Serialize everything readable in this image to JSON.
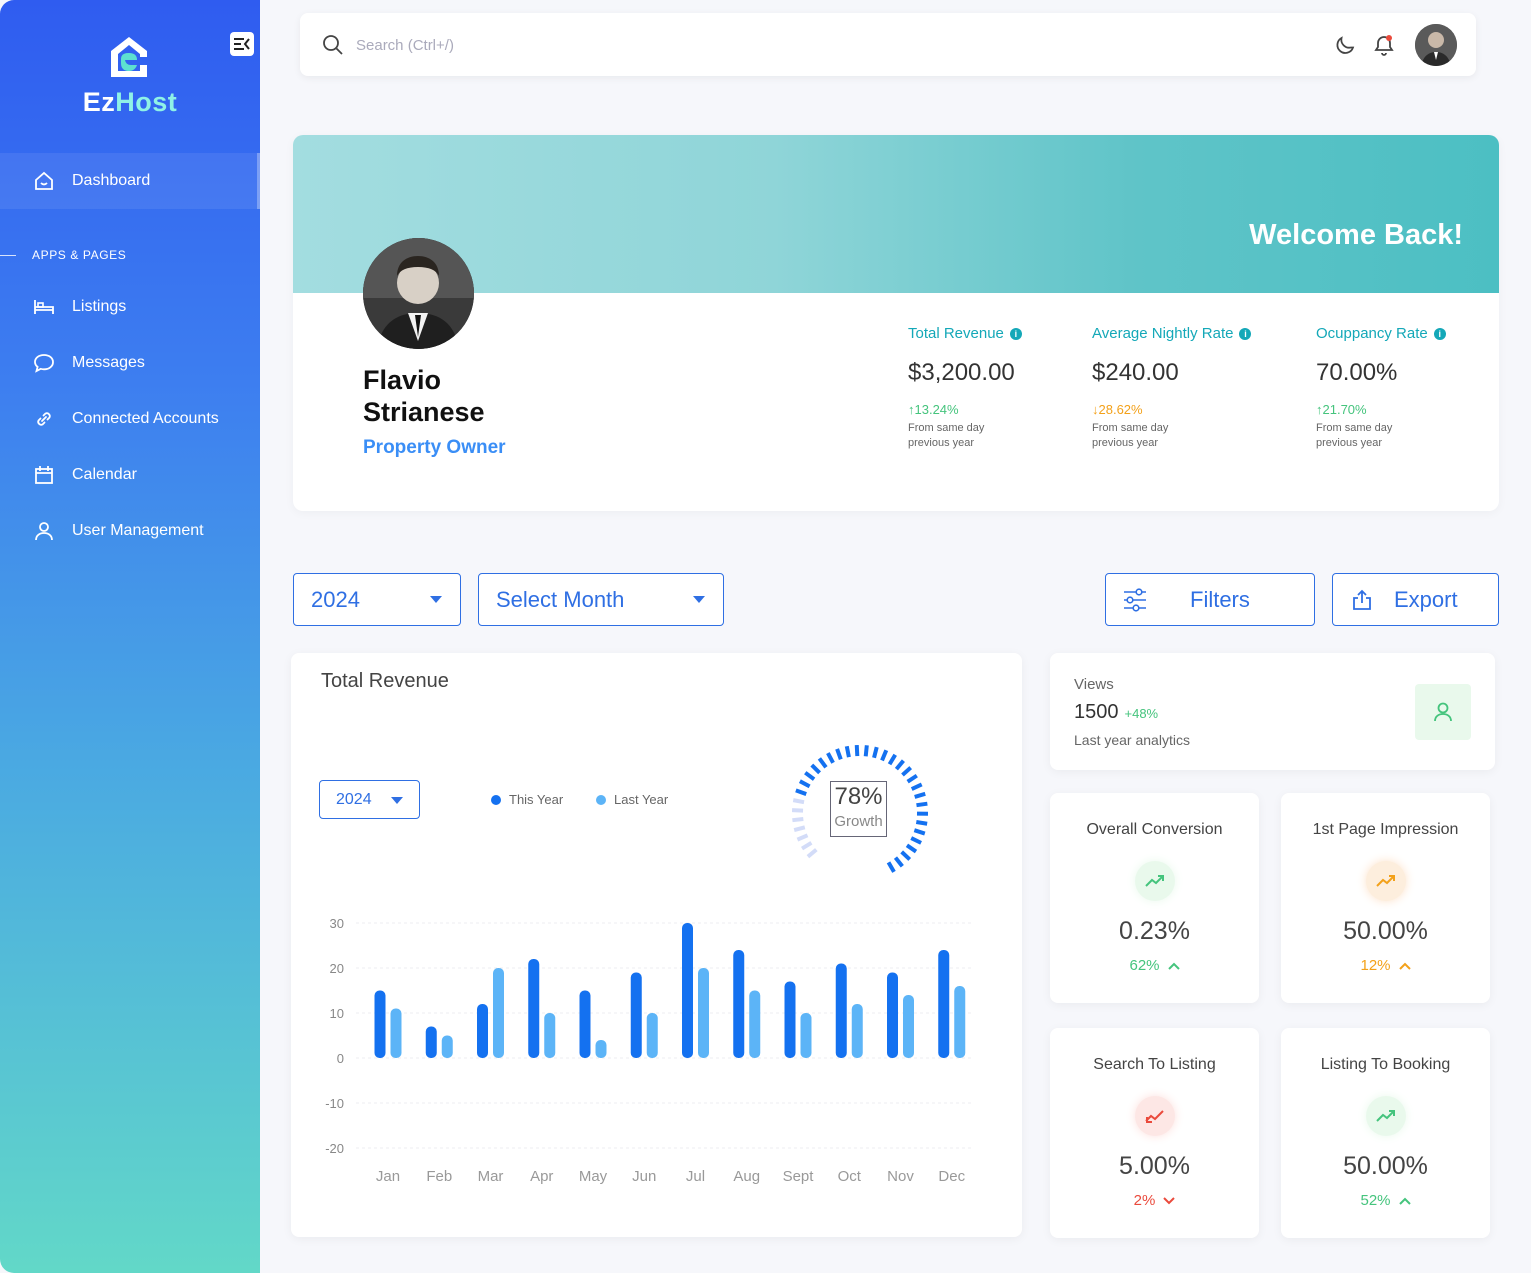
{
  "brand": {
    "part1": "Ez",
    "part2": "Host"
  },
  "sidebar": {
    "section_label": "APPS & PAGES",
    "items": [
      {
        "label": "Dashboard",
        "icon": "home-icon"
      },
      {
        "label": "Listings",
        "icon": "bed-icon"
      },
      {
        "label": "Messages",
        "icon": "chat-icon"
      },
      {
        "label": "Connected Accounts",
        "icon": "link-icon"
      },
      {
        "label": "Calendar",
        "icon": "calendar-icon"
      },
      {
        "label": "User Management",
        "icon": "user-icon"
      }
    ]
  },
  "topbar": {
    "search_placeholder": "Search (Ctrl+/)"
  },
  "profile": {
    "welcome": "Welcome Back!",
    "first_name": "Flavio",
    "last_name": "Strianese",
    "role": "Property Owner",
    "stats": [
      {
        "label": "Total Revenue",
        "value": "$3,200.00",
        "change": "13.24%",
        "direction": "up",
        "note": "From same day previous year"
      },
      {
        "label": "Average Nightly Rate",
        "value": "$240.00",
        "change": "28.62%",
        "direction": "down",
        "note": "From same day previous year"
      },
      {
        "label": "Ocuppancy Rate",
        "value": "70.00%",
        "change": "21.70%",
        "direction": "up",
        "note": "From same day previous year"
      }
    ]
  },
  "controls": {
    "year": "2024",
    "month": "Select Month",
    "filters": "Filters",
    "export": "Export"
  },
  "revenue": {
    "title": "Total Revenue",
    "year": "2024",
    "gauge_value": "78%",
    "gauge_label": "Growth",
    "gauge_fraction": 0.78
  },
  "chart_data": {
    "type": "bar",
    "categories": [
      "Jan",
      "Feb",
      "Mar",
      "Apr",
      "May",
      "Jun",
      "Jul",
      "Aug",
      "Sept",
      "Oct",
      "Nov",
      "Dec"
    ],
    "series": [
      {
        "name": "This Year",
        "values": [
          15,
          7,
          12,
          22,
          15,
          19,
          30,
          24,
          17,
          21,
          19,
          24
        ],
        "color": "#1471f0"
      },
      {
        "name": "Last Year",
        "values": [
          11,
          5,
          20,
          10,
          4,
          10,
          20,
          15,
          10,
          12,
          14,
          16
        ],
        "color": "#5cb4f7"
      }
    ],
    "ylim": [
      -20,
      30
    ],
    "yticks": [
      30,
      20,
      10,
      0,
      -10,
      -20
    ],
    "grid": true,
    "legend": "top"
  },
  "views": {
    "label": "Views",
    "value": "1500",
    "change": "+48%",
    "note": "Last year analytics"
  },
  "metrics": [
    {
      "title": "Overall Conversion",
      "value": "0.23%",
      "change": "62%",
      "direction": "up",
      "color": "#45c47d",
      "bg": "#e9f9ec",
      "icon": "trend-up-icon"
    },
    {
      "title": "1st Page Impression",
      "value": "50.00%",
      "change": "12%",
      "direction": "up",
      "color": "#f3a11a",
      "bg": "#fdeedd",
      "icon": "trend-up-icon"
    },
    {
      "title": "Search To Listing",
      "value": "5.00%",
      "change": "2%",
      "direction": "down",
      "color": "#ea4a3c",
      "bg": "#fde7e5",
      "icon": "trend-down-icon"
    },
    {
      "title": "Listing To Booking",
      "value": "50.00%",
      "change": "52%",
      "direction": "up",
      "color": "#45c47d",
      "bg": "#e9f9ec",
      "icon": "trend-up-icon"
    }
  ]
}
